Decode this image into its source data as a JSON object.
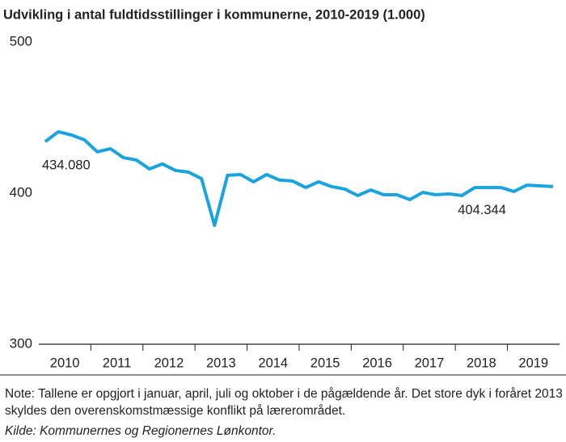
{
  "chart_data": {
    "type": "line",
    "title": "Udvikling i antal fuldtidsstillinger i kommunerne, 2010-2019 (1.000)",
    "categories": [
      "2010",
      null,
      null,
      null,
      "2011",
      null,
      null,
      null,
      "2012",
      null,
      null,
      null,
      "2013",
      null,
      null,
      null,
      "2014",
      null,
      null,
      null,
      "2015",
      null,
      null,
      null,
      "2016",
      null,
      null,
      null,
      "2017",
      null,
      null,
      null,
      "2018",
      null,
      null,
      null,
      "2019",
      null,
      null,
      null
    ],
    "series": [
      {
        "color": "#1aa3dd",
        "values": [
          434.08,
          440.6,
          438.5,
          435.3,
          427.3,
          429.4,
          423.5,
          421.9,
          416.0,
          419.3,
          415.0,
          413.9,
          409.6,
          378.6,
          411.8,
          412.3,
          407.5,
          412.3,
          408.6,
          408.0,
          403.7,
          407.5,
          404.3,
          402.7,
          398.4,
          402.1,
          398.9,
          398.9,
          395.7,
          400.5,
          398.9,
          399.5,
          398.4,
          403.7,
          403.7,
          403.7,
          401.1,
          405.3,
          404.8,
          404.344
        ],
        "value_labels": [
          "434.080",
          null,
          null,
          null,
          null,
          null,
          null,
          null,
          null,
          null,
          null,
          null,
          null,
          null,
          null,
          null,
          null,
          null,
          null,
          null,
          null,
          null,
          null,
          null,
          null,
          null,
          null,
          null,
          null,
          null,
          null,
          null,
          null,
          null,
          null,
          null,
          null,
          null,
          null,
          "404.344"
        ]
      }
    ],
    "ylim": [
      300,
      500
    ],
    "yticks": [
      300,
      400,
      500
    ],
    "grid": false,
    "note": "Note: Tallene er opgjort i januar, april, juli og oktober i de pågældende år. Det store dyk i foråret 2013 skyldes den overenskomstmæssige konflikt på lærerområdet.",
    "source": "Kilde: Kommunernes og Regionernes Lønkontor."
  }
}
